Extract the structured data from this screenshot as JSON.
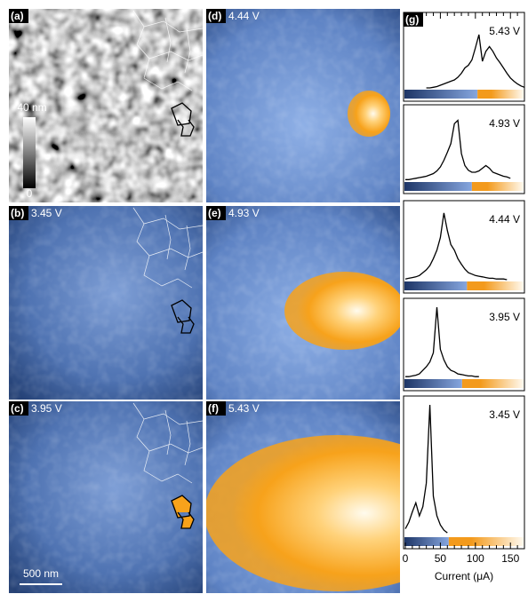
{
  "panels": [
    {
      "label": "(a)"
    },
    {
      "label": "(b)",
      "voltage": "3.45 V"
    },
    {
      "label": "(c)",
      "voltage": "3.95 V"
    },
    {
      "label": "(d)",
      "voltage": "4.44 V"
    },
    {
      "label": "(e)",
      "voltage": "4.93 V"
    },
    {
      "label": "(f)",
      "voltage": "5.43 V"
    }
  ],
  "colorbar": {
    "max": "40 nm",
    "min": "0"
  },
  "scale_bar": "500 nm",
  "chart_data": {
    "type": "line",
    "label": "(g)",
    "xlabel": "Current (μA)",
    "x": [
      0,
      5,
      10,
      15,
      20,
      25,
      30,
      35,
      40,
      45,
      50,
      55,
      60,
      65,
      70,
      75,
      80,
      85,
      90,
      95,
      100,
      105,
      110,
      115,
      120,
      125,
      130,
      135,
      140,
      145,
      150,
      155,
      160,
      165,
      170
    ],
    "xlim": [
      0,
      170
    ],
    "xticks": [
      0,
      50,
      100,
      150
    ],
    "minor_xticks": [
      10,
      20,
      30,
      40,
      60,
      70,
      80,
      90,
      110,
      120,
      130,
      140,
      160
    ],
    "ylim": [
      0,
      100
    ],
    "colormap": [
      "#1d3566",
      "#86a6df",
      "#f39a1c",
      "#fffaf0"
    ],
    "series": [
      {
        "name": "5.43 V",
        "color": "#000000",
        "threshold": 103,
        "values": [
          null,
          null,
          null,
          null,
          null,
          null,
          0,
          0,
          1,
          2,
          4,
          6,
          8,
          10,
          12,
          16,
          22,
          30,
          34,
          42,
          60,
          80,
          40,
          55,
          62,
          55,
          45,
          38,
          30,
          22,
          15,
          10,
          6,
          3,
          1
        ]
      },
      {
        "name": "4.93 V",
        "color": "#000000",
        "threshold": 95,
        "values": [
          1,
          1,
          2,
          3,
          4,
          5,
          6,
          8,
          10,
          14,
          20,
          30,
          42,
          55,
          85,
          90,
          40,
          22,
          15,
          12,
          12,
          14,
          18,
          22,
          18,
          12,
          10,
          8,
          6,
          5,
          3,
          null,
          null,
          null,
          null
        ]
      },
      {
        "name": "4.44 V",
        "color": "#000000",
        "threshold": 88,
        "values": [
          1,
          2,
          3,
          4,
          6,
          10,
          14,
          20,
          30,
          42,
          60,
          95,
          70,
          50,
          42,
          30,
          22,
          15,
          10,
          8,
          6,
          5,
          4,
          3,
          2,
          2,
          1,
          1,
          1,
          0,
          null,
          null,
          null,
          null,
          null
        ]
      },
      {
        "name": "3.95 V",
        "color": "#000000",
        "threshold": 81,
        "values": [
          1,
          1,
          2,
          3,
          5,
          10,
          15,
          22,
          35,
          100,
          40,
          25,
          15,
          10,
          8,
          5,
          4,
          3,
          2,
          2,
          1,
          1,
          null,
          null,
          null,
          null,
          null,
          null,
          null,
          null,
          null,
          null,
          null,
          null,
          null
        ]
      },
      {
        "name": "3.45 V",
        "color": "#000000",
        "threshold": 62,
        "values": [
          5,
          10,
          18,
          25,
          15,
          22,
          40,
          100,
          30,
          15,
          8,
          4,
          2,
          null,
          null,
          null,
          null,
          null,
          null,
          null,
          null,
          null,
          null,
          null,
          null,
          null,
          null,
          null,
          null,
          null,
          null,
          null,
          null,
          null,
          null
        ]
      }
    ]
  }
}
